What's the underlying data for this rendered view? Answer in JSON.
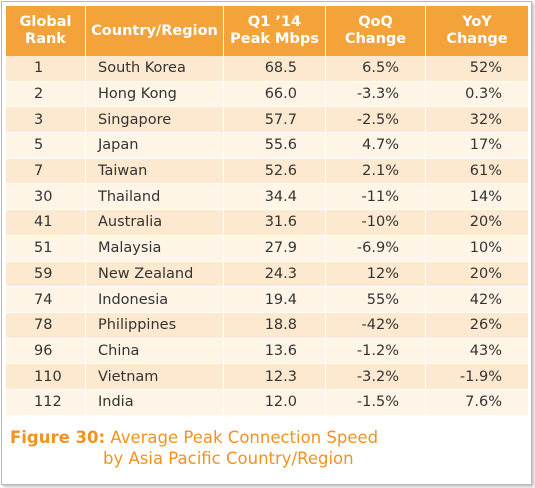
{
  "table": {
    "headers": {
      "rank": [
        "Global",
        "Rank"
      ],
      "country": [
        "Country/Region"
      ],
      "peak": [
        "Q1 ’14",
        "Peak Mbps"
      ],
      "qoq": [
        "QoQ",
        "Change"
      ],
      "yoy": [
        "YoY",
        "Change"
      ]
    },
    "rows": [
      {
        "rank": "1",
        "country": "South Korea",
        "peak": "68.5",
        "qoq": "6.5%",
        "yoy": "52%"
      },
      {
        "rank": "2",
        "country": "Hong Kong",
        "peak": "66.0",
        "qoq": "-3.3%",
        "yoy": "0.3%"
      },
      {
        "rank": "3",
        "country": "Singapore",
        "peak": "57.7",
        "qoq": "-2.5%",
        "yoy": "32%"
      },
      {
        "rank": "5",
        "country": "Japan",
        "peak": "55.6",
        "qoq": "4.7%",
        "yoy": "17%"
      },
      {
        "rank": "7",
        "country": "Taiwan",
        "peak": "52.6",
        "qoq": "2.1%",
        "yoy": "61%"
      },
      {
        "rank": "30",
        "country": "Thailand",
        "peak": "34.4",
        "qoq": "-11%",
        "yoy": "14%"
      },
      {
        "rank": "41",
        "country": "Australia",
        "peak": "31.6",
        "qoq": "-10%",
        "yoy": "20%"
      },
      {
        "rank": "51",
        "country": "Malaysia",
        "peak": "27.9",
        "qoq": "-6.9%",
        "yoy": "10%"
      },
      {
        "rank": "59",
        "country": "New Zealand",
        "peak": "24.3",
        "qoq": "12%",
        "yoy": "20%"
      },
      {
        "rank": "74",
        "country": "Indonesia",
        "peak": "19.4",
        "qoq": "55%",
        "yoy": "42%"
      },
      {
        "rank": "78",
        "country": "Philippines",
        "peak": "18.8",
        "qoq": "-42%",
        "yoy": "26%"
      },
      {
        "rank": "96",
        "country": "China",
        "peak": "13.6",
        "qoq": "-1.2%",
        "yoy": "43%"
      },
      {
        "rank": "110",
        "country": "Vietnam",
        "peak": "12.3",
        "qoq": "-3.2%",
        "yoy": "-1.9%"
      },
      {
        "rank": "112",
        "country": "India",
        "peak": "12.0",
        "qoq": "-1.5%",
        "yoy": "7.6%"
      }
    ]
  },
  "caption": {
    "figure": "Figure 30:",
    "line1": " Average Peak Connection Speed",
    "line2": "by Asia Pacific Country/Region"
  },
  "colors": {
    "header_bg": "#f4a33b",
    "row_dark": "#fde9cf",
    "row_light": "#fef5e7",
    "caption": "#f29221"
  }
}
